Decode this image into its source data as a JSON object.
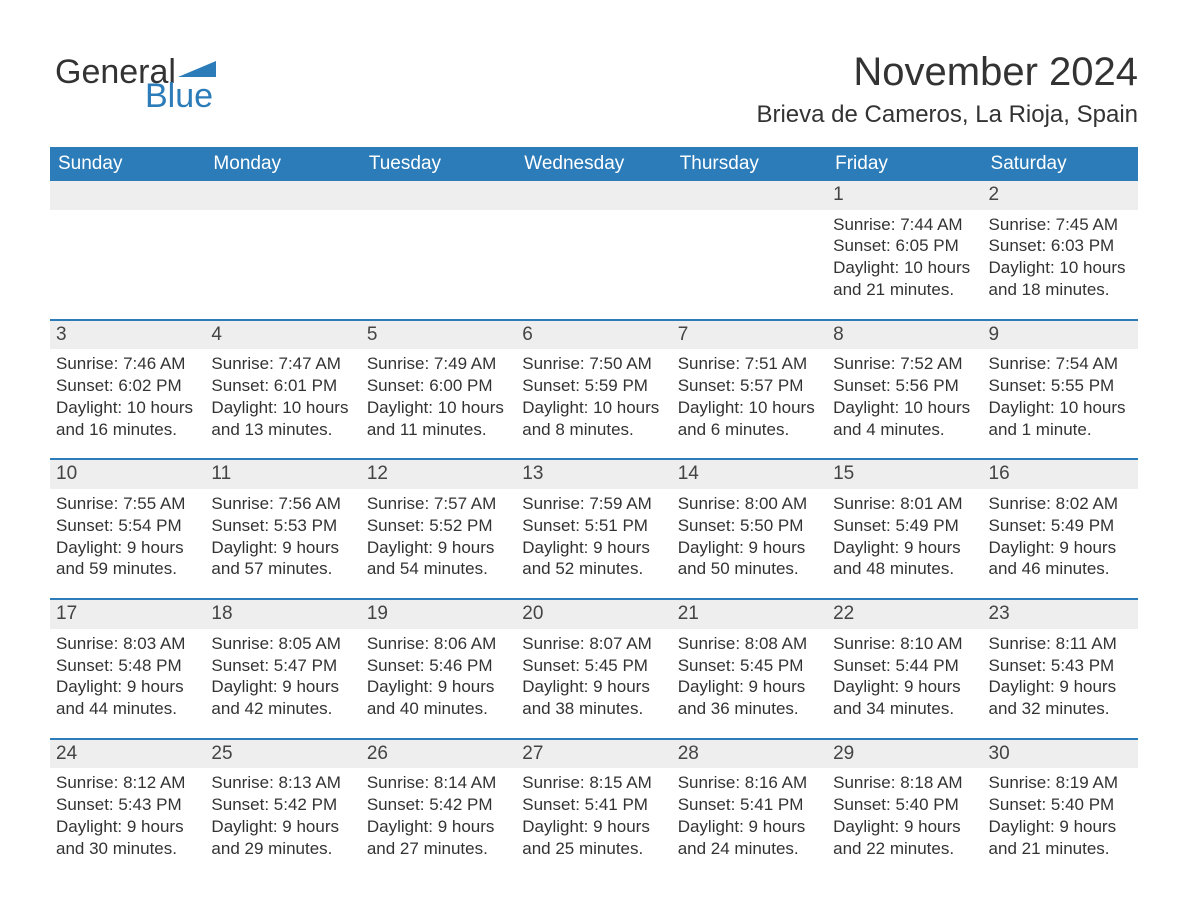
{
  "logo": {
    "word1": "General",
    "word2": "Blue",
    "accent_color": "#2b7cb9"
  },
  "title": "November 2024",
  "location": "Brieva de Cameros, La Rioja, Spain",
  "colors": {
    "header_bg": "#2b7cb9",
    "header_text": "#ffffff",
    "daynum_bg": "#eeeeee",
    "week_divider": "#2b7cb9",
    "body_text": "#333333",
    "page_bg": "#ffffff"
  },
  "typography": {
    "title_fontsize": 40,
    "location_fontsize": 24,
    "dow_fontsize": 19,
    "daynum_fontsize": 19,
    "body_fontsize": 17
  },
  "days_of_week": [
    "Sunday",
    "Monday",
    "Tuesday",
    "Wednesday",
    "Thursday",
    "Friday",
    "Saturday"
  ],
  "weeks": [
    [
      {
        "empty": true
      },
      {
        "empty": true
      },
      {
        "empty": true
      },
      {
        "empty": true
      },
      {
        "empty": true
      },
      {
        "day": "1",
        "sunrise": "Sunrise: 7:44 AM",
        "sunset": "Sunset: 6:05 PM",
        "daylight1": "Daylight: 10 hours",
        "daylight2": "and 21 minutes."
      },
      {
        "day": "2",
        "sunrise": "Sunrise: 7:45 AM",
        "sunset": "Sunset: 6:03 PM",
        "daylight1": "Daylight: 10 hours",
        "daylight2": "and 18 minutes."
      }
    ],
    [
      {
        "day": "3",
        "sunrise": "Sunrise: 7:46 AM",
        "sunset": "Sunset: 6:02 PM",
        "daylight1": "Daylight: 10 hours",
        "daylight2": "and 16 minutes."
      },
      {
        "day": "4",
        "sunrise": "Sunrise: 7:47 AM",
        "sunset": "Sunset: 6:01 PM",
        "daylight1": "Daylight: 10 hours",
        "daylight2": "and 13 minutes."
      },
      {
        "day": "5",
        "sunrise": "Sunrise: 7:49 AM",
        "sunset": "Sunset: 6:00 PM",
        "daylight1": "Daylight: 10 hours",
        "daylight2": "and 11 minutes."
      },
      {
        "day": "6",
        "sunrise": "Sunrise: 7:50 AM",
        "sunset": "Sunset: 5:59 PM",
        "daylight1": "Daylight: 10 hours",
        "daylight2": "and 8 minutes."
      },
      {
        "day": "7",
        "sunrise": "Sunrise: 7:51 AM",
        "sunset": "Sunset: 5:57 PM",
        "daylight1": "Daylight: 10 hours",
        "daylight2": "and 6 minutes."
      },
      {
        "day": "8",
        "sunrise": "Sunrise: 7:52 AM",
        "sunset": "Sunset: 5:56 PM",
        "daylight1": "Daylight: 10 hours",
        "daylight2": "and 4 minutes."
      },
      {
        "day": "9",
        "sunrise": "Sunrise: 7:54 AM",
        "sunset": "Sunset: 5:55 PM",
        "daylight1": "Daylight: 10 hours",
        "daylight2": "and 1 minute."
      }
    ],
    [
      {
        "day": "10",
        "sunrise": "Sunrise: 7:55 AM",
        "sunset": "Sunset: 5:54 PM",
        "daylight1": "Daylight: 9 hours",
        "daylight2": "and 59 minutes."
      },
      {
        "day": "11",
        "sunrise": "Sunrise: 7:56 AM",
        "sunset": "Sunset: 5:53 PM",
        "daylight1": "Daylight: 9 hours",
        "daylight2": "and 57 minutes."
      },
      {
        "day": "12",
        "sunrise": "Sunrise: 7:57 AM",
        "sunset": "Sunset: 5:52 PM",
        "daylight1": "Daylight: 9 hours",
        "daylight2": "and 54 minutes."
      },
      {
        "day": "13",
        "sunrise": "Sunrise: 7:59 AM",
        "sunset": "Sunset: 5:51 PM",
        "daylight1": "Daylight: 9 hours",
        "daylight2": "and 52 minutes."
      },
      {
        "day": "14",
        "sunrise": "Sunrise: 8:00 AM",
        "sunset": "Sunset: 5:50 PM",
        "daylight1": "Daylight: 9 hours",
        "daylight2": "and 50 minutes."
      },
      {
        "day": "15",
        "sunrise": "Sunrise: 8:01 AM",
        "sunset": "Sunset: 5:49 PM",
        "daylight1": "Daylight: 9 hours",
        "daylight2": "and 48 minutes."
      },
      {
        "day": "16",
        "sunrise": "Sunrise: 8:02 AM",
        "sunset": "Sunset: 5:49 PM",
        "daylight1": "Daylight: 9 hours",
        "daylight2": "and 46 minutes."
      }
    ],
    [
      {
        "day": "17",
        "sunrise": "Sunrise: 8:03 AM",
        "sunset": "Sunset: 5:48 PM",
        "daylight1": "Daylight: 9 hours",
        "daylight2": "and 44 minutes."
      },
      {
        "day": "18",
        "sunrise": "Sunrise: 8:05 AM",
        "sunset": "Sunset: 5:47 PM",
        "daylight1": "Daylight: 9 hours",
        "daylight2": "and 42 minutes."
      },
      {
        "day": "19",
        "sunrise": "Sunrise: 8:06 AM",
        "sunset": "Sunset: 5:46 PM",
        "daylight1": "Daylight: 9 hours",
        "daylight2": "and 40 minutes."
      },
      {
        "day": "20",
        "sunrise": "Sunrise: 8:07 AM",
        "sunset": "Sunset: 5:45 PM",
        "daylight1": "Daylight: 9 hours",
        "daylight2": "and 38 minutes."
      },
      {
        "day": "21",
        "sunrise": "Sunrise: 8:08 AM",
        "sunset": "Sunset: 5:45 PM",
        "daylight1": "Daylight: 9 hours",
        "daylight2": "and 36 minutes."
      },
      {
        "day": "22",
        "sunrise": "Sunrise: 8:10 AM",
        "sunset": "Sunset: 5:44 PM",
        "daylight1": "Daylight: 9 hours",
        "daylight2": "and 34 minutes."
      },
      {
        "day": "23",
        "sunrise": "Sunrise: 8:11 AM",
        "sunset": "Sunset: 5:43 PM",
        "daylight1": "Daylight: 9 hours",
        "daylight2": "and 32 minutes."
      }
    ],
    [
      {
        "day": "24",
        "sunrise": "Sunrise: 8:12 AM",
        "sunset": "Sunset: 5:43 PM",
        "daylight1": "Daylight: 9 hours",
        "daylight2": "and 30 minutes."
      },
      {
        "day": "25",
        "sunrise": "Sunrise: 8:13 AM",
        "sunset": "Sunset: 5:42 PM",
        "daylight1": "Daylight: 9 hours",
        "daylight2": "and 29 minutes."
      },
      {
        "day": "26",
        "sunrise": "Sunrise: 8:14 AM",
        "sunset": "Sunset: 5:42 PM",
        "daylight1": "Daylight: 9 hours",
        "daylight2": "and 27 minutes."
      },
      {
        "day": "27",
        "sunrise": "Sunrise: 8:15 AM",
        "sunset": "Sunset: 5:41 PM",
        "daylight1": "Daylight: 9 hours",
        "daylight2": "and 25 minutes."
      },
      {
        "day": "28",
        "sunrise": "Sunrise: 8:16 AM",
        "sunset": "Sunset: 5:41 PM",
        "daylight1": "Daylight: 9 hours",
        "daylight2": "and 24 minutes."
      },
      {
        "day": "29",
        "sunrise": "Sunrise: 8:18 AM",
        "sunset": "Sunset: 5:40 PM",
        "daylight1": "Daylight: 9 hours",
        "daylight2": "and 22 minutes."
      },
      {
        "day": "30",
        "sunrise": "Sunrise: 8:19 AM",
        "sunset": "Sunset: 5:40 PM",
        "daylight1": "Daylight: 9 hours",
        "daylight2": "and 21 minutes."
      }
    ]
  ]
}
